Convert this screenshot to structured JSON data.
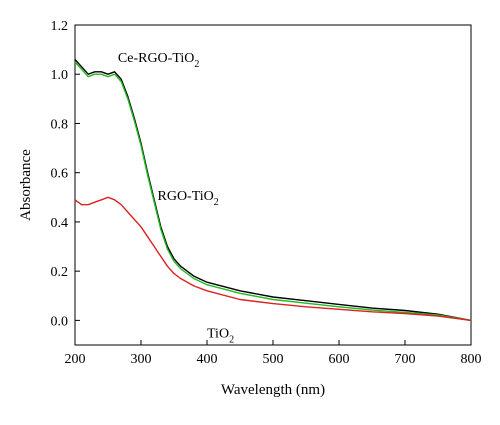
{
  "chart_data": {
    "type": "line",
    "title": "",
    "xlabel": "Wavelength (nm)",
    "ylabel": "Absorbance",
    "xlim": [
      200,
      800
    ],
    "ylim": [
      -0.1,
      1.2
    ],
    "x_ticks": [
      200,
      300,
      400,
      500,
      600,
      700,
      800
    ],
    "y_ticks": [
      0.0,
      0.2,
      0.4,
      0.6,
      0.8,
      1.0,
      1.2
    ],
    "y_tick_labels": [
      "0.0",
      "0.2",
      "0.4",
      "0.6",
      "0.8",
      "1.0",
      "1.2"
    ],
    "grid": false,
    "legend": "none",
    "series": [
      {
        "color": "#000000",
        "points": [
          [
            200,
            1.06
          ],
          [
            210,
            1.03
          ],
          [
            220,
            1.0
          ],
          [
            230,
            1.01
          ],
          [
            240,
            1.01
          ],
          [
            250,
            1.0
          ],
          [
            260,
            1.01
          ],
          [
            270,
            0.98
          ],
          [
            280,
            0.91
          ],
          [
            290,
            0.82
          ],
          [
            300,
            0.72
          ],
          [
            310,
            0.6
          ],
          [
            320,
            0.49
          ],
          [
            330,
            0.38
          ],
          [
            340,
            0.3
          ],
          [
            350,
            0.25
          ],
          [
            360,
            0.22
          ],
          [
            380,
            0.18
          ],
          [
            400,
            0.155
          ],
          [
            450,
            0.12
          ],
          [
            500,
            0.095
          ],
          [
            550,
            0.08
          ],
          [
            600,
            0.065
          ],
          [
            650,
            0.05
          ],
          [
            700,
            0.04
          ],
          [
            750,
            0.025
          ],
          [
            800,
            0.0
          ]
        ]
      },
      {
        "color": "#22bb22",
        "points": [
          [
            200,
            1.05
          ],
          [
            210,
            1.02
          ],
          [
            220,
            0.99
          ],
          [
            230,
            1.0
          ],
          [
            240,
            1.0
          ],
          [
            250,
            0.99
          ],
          [
            260,
            1.0
          ],
          [
            270,
            0.97
          ],
          [
            280,
            0.9
          ],
          [
            290,
            0.81
          ],
          [
            300,
            0.71
          ],
          [
            310,
            0.59
          ],
          [
            320,
            0.48
          ],
          [
            330,
            0.37
          ],
          [
            340,
            0.29
          ],
          [
            350,
            0.24
          ],
          [
            360,
            0.21
          ],
          [
            380,
            0.17
          ],
          [
            400,
            0.145
          ],
          [
            450,
            0.11
          ],
          [
            500,
            0.085
          ],
          [
            550,
            0.07
          ],
          [
            600,
            0.055
          ],
          [
            650,
            0.042
          ],
          [
            700,
            0.032
          ],
          [
            750,
            0.022
          ],
          [
            800,
            0.0
          ]
        ]
      },
      {
        "color": "#dd2222",
        "points": [
          [
            200,
            0.49
          ],
          [
            210,
            0.47
          ],
          [
            220,
            0.47
          ],
          [
            230,
            0.48
          ],
          [
            240,
            0.49
          ],
          [
            250,
            0.5
          ],
          [
            260,
            0.49
          ],
          [
            270,
            0.47
          ],
          [
            280,
            0.44
          ],
          [
            290,
            0.41
          ],
          [
            300,
            0.38
          ],
          [
            310,
            0.34
          ],
          [
            320,
            0.3
          ],
          [
            330,
            0.26
          ],
          [
            340,
            0.22
          ],
          [
            350,
            0.19
          ],
          [
            360,
            0.17
          ],
          [
            380,
            0.14
          ],
          [
            400,
            0.12
          ],
          [
            450,
            0.085
          ],
          [
            500,
            0.068
          ],
          [
            550,
            0.055
          ],
          [
            600,
            0.045
          ],
          [
            650,
            0.035
          ],
          [
            700,
            0.028
          ],
          [
            750,
            0.018
          ],
          [
            800,
            0.0
          ]
        ]
      }
    ],
    "annotations": [
      {
        "text": "Ce-RGO-TiO",
        "sub": "2",
        "x": 265,
        "y": 1.05
      },
      {
        "text": "RGO-TiO",
        "sub": "2",
        "x": 325,
        "y": 0.49
      },
      {
        "text": "TiO",
        "sub": "2",
        "x": 400,
        "y": -0.07
      }
    ]
  }
}
